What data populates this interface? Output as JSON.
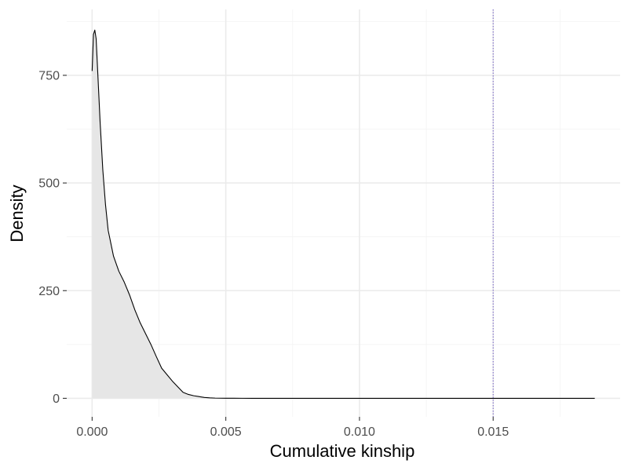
{
  "chart_data": {
    "type": "area",
    "title": "",
    "xlabel": "Cumulative kinship",
    "ylabel": "Density",
    "xlim": [
      -0.00095,
      0.01975
    ],
    "ylim": [
      -43,
      903
    ],
    "x_ticks": [
      0.0,
      0.005,
      0.01,
      0.015
    ],
    "x_tick_labels": [
      "0.000",
      "0.005",
      "0.010",
      "0.015"
    ],
    "y_ticks": [
      0,
      250,
      500,
      750
    ],
    "y_tick_labels": [
      "0",
      "250",
      "500",
      "750"
    ],
    "grid": true,
    "legend": "none",
    "series": [
      {
        "x": [
          0.0,
          5e-05,
          0.0001,
          0.00015,
          0.0002,
          0.0003,
          0.0004,
          0.0005,
          0.0006,
          0.0008,
          0.001,
          0.0012,
          0.0014,
          0.0016,
          0.0018,
          0.002,
          0.0022,
          0.0024,
          0.0026,
          0.0028,
          0.003,
          0.0032,
          0.0034,
          0.0036,
          0.0038,
          0.004,
          0.0042,
          0.0044,
          0.0046,
          0.0048,
          0.005,
          0.0053,
          0.0056,
          0.006,
          0.007,
          0.008,
          0.01,
          0.012,
          0.014,
          0.016,
          0.018,
          0.0188
        ],
        "y": [
          760,
          845,
          855,
          835,
          770,
          640,
          530,
          450,
          390,
          330,
          295,
          270,
          240,
          205,
          175,
          150,
          125,
          97,
          70,
          55,
          40,
          27,
          14,
          9,
          6,
          4,
          2,
          1,
          0.5,
          0.3,
          0.2,
          0.1,
          0.05,
          0,
          0,
          0,
          0,
          0,
          0,
          0,
          0,
          0
        ],
        "color": "#000000",
        "fill": "#e6e6e6"
      }
    ],
    "annotations": [
      {
        "type": "vline",
        "x": 0.015,
        "color": "#7b68c8",
        "style": "dotted"
      }
    ],
    "colors": {
      "panel_background": "#ffffff",
      "grid_major": "#ebebeb",
      "grid_minor": "#f3f3f3",
      "curve": "#000000",
      "fill": "#e6e6e6",
      "vline": "#7b68c8",
      "tick_text": "#4d4d4d",
      "axis_title_text": "#000000"
    }
  }
}
